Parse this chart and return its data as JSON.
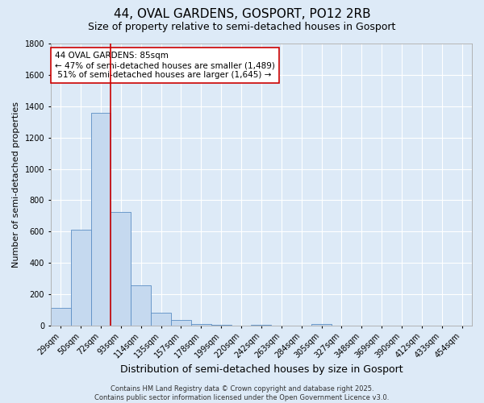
{
  "title": "44, OVAL GARDENS, GOSPORT, PO12 2RB",
  "subtitle": "Size of property relative to semi-detached houses in Gosport",
  "xlabel": "Distribution of semi-detached houses by size in Gosport",
  "ylabel": "Number of semi-detached properties",
  "categories": [
    "29sqm",
    "50sqm",
    "72sqm",
    "93sqm",
    "114sqm",
    "135sqm",
    "157sqm",
    "178sqm",
    "199sqm",
    "220sqm",
    "242sqm",
    "263sqm",
    "284sqm",
    "305sqm",
    "327sqm",
    "348sqm",
    "369sqm",
    "390sqm",
    "412sqm",
    "433sqm",
    "454sqm"
  ],
  "values": [
    115,
    610,
    1360,
    725,
    255,
    80,
    35,
    12,
    5,
    0,
    5,
    0,
    0,
    12,
    0,
    0,
    0,
    0,
    0,
    0,
    0
  ],
  "bar_color": "#c5d9ef",
  "bar_edge_color": "#5b8ec4",
  "vline_x": 2.5,
  "vline_color": "#cc0000",
  "annotation_text": "44 OVAL GARDENS: 85sqm\n← 47% of semi-detached houses are smaller (1,489)\n 51% of semi-detached houses are larger (1,645) →",
  "annotation_box_color": "#ffffff",
  "annotation_box_edge": "#cc0000",
  "ylim": [
    0,
    1800
  ],
  "yticks": [
    0,
    200,
    400,
    600,
    800,
    1000,
    1200,
    1400,
    1600,
    1800
  ],
  "background_color": "#ddeaf7",
  "grid_color": "#ffffff",
  "footer": "Contains HM Land Registry data © Crown copyright and database right 2025.\nContains public sector information licensed under the Open Government Licence v3.0.",
  "title_fontsize": 11,
  "subtitle_fontsize": 9,
  "xlabel_fontsize": 9,
  "ylabel_fontsize": 8,
  "tick_fontsize": 7,
  "annotation_fontsize": 7.5,
  "footer_fontsize": 6
}
